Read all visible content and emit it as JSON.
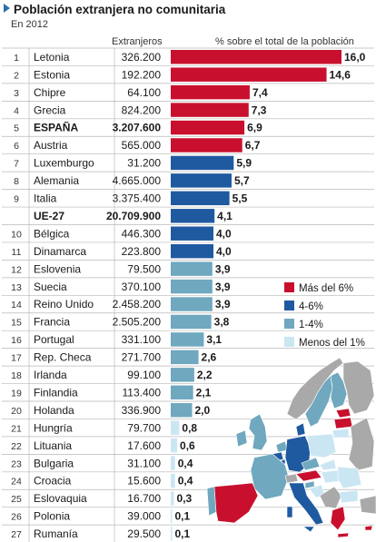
{
  "header": {
    "title": "Población extranjera no comunitaria",
    "subtitle": "En 2012",
    "col_extranjeros": "Extranjeros",
    "col_porcentaje": "% sobre el total de la población"
  },
  "colors": {
    "mas_6": "#c8102e",
    "de_4_6": "#1f5aa0",
    "de_1_4": "#6fa8bf",
    "menos_1": "#cbe6f3",
    "row_bg": "#ffffff",
    "row_rule": "#b8b8b8"
  },
  "legend": {
    "items": [
      {
        "label": "Más del 6%",
        "color": "#c8102e"
      },
      {
        "label": "4-6%",
        "color": "#1f5aa0"
      },
      {
        "label": "1-4%",
        "color": "#6fa8bf"
      },
      {
        "label": "Menos del 1%",
        "color": "#cbe6f3"
      }
    ]
  },
  "map": {
    "label": "Mapa de Europa coloreado por porcentaje"
  },
  "chart_data": {
    "type": "bar",
    "orientation": "horizontal",
    "title": "Población extranjera no comunitaria",
    "subtitle": "En 2012",
    "xlabel": "% sobre el total de la población",
    "xlim": [
      0,
      16
    ],
    "rows": [
      {
        "rank": "1",
        "country": "Letonia",
        "foreigners": "326.200",
        "pct": 16.0,
        "label": "16,0",
        "bold": false
      },
      {
        "rank": "2",
        "country": "Estonia",
        "foreigners": "192.200",
        "pct": 14.6,
        "label": "14,6",
        "bold": false
      },
      {
        "rank": "3",
        "country": "Chipre",
        "foreigners": "64.100",
        "pct": 7.4,
        "label": "7,4",
        "bold": false
      },
      {
        "rank": "4",
        "country": "Grecia",
        "foreigners": "824.200",
        "pct": 7.3,
        "label": "7,3",
        "bold": false
      },
      {
        "rank": "5",
        "country": "ESPAÑA",
        "foreigners": "3.207.600",
        "pct": 6.9,
        "label": "6,9",
        "bold": true
      },
      {
        "rank": "6",
        "country": "Austria",
        "foreigners": "565.000",
        "pct": 6.7,
        "label": "6,7",
        "bold": false
      },
      {
        "rank": "7",
        "country": "Luxemburgo",
        "foreigners": "31.200",
        "pct": 5.9,
        "label": "5,9",
        "bold": false
      },
      {
        "rank": "8",
        "country": "Alemania",
        "foreigners": "4.665.000",
        "pct": 5.7,
        "label": "5,7",
        "bold": false
      },
      {
        "rank": "9",
        "country": "Italia",
        "foreigners": "3.375.400",
        "pct": 5.5,
        "label": "5,5",
        "bold": false
      },
      {
        "rank": "",
        "country": "UE-27",
        "foreigners": "20.709.900",
        "pct": 4.1,
        "label": "4,1",
        "bold": true
      },
      {
        "rank": "10",
        "country": "Bélgica",
        "foreigners": "446.300",
        "pct": 4.0,
        "label": "4,0",
        "bold": false
      },
      {
        "rank": "11",
        "country": "Dinamarca",
        "foreigners": "223.800",
        "pct": 4.0,
        "label": "4,0",
        "bold": false
      },
      {
        "rank": "12",
        "country": "Eslovenia",
        "foreigners": "79.500",
        "pct": 3.9,
        "label": "3,9",
        "bold": false
      },
      {
        "rank": "13",
        "country": "Suecia",
        "foreigners": "370.100",
        "pct": 3.9,
        "label": "3,9",
        "bold": false
      },
      {
        "rank": "14",
        "country": "Reino Unido",
        "foreigners": "2.458.200",
        "pct": 3.9,
        "label": "3,9",
        "bold": false
      },
      {
        "rank": "15",
        "country": "Francia",
        "foreigners": "2.505.200",
        "pct": 3.8,
        "label": "3,8",
        "bold": false
      },
      {
        "rank": "16",
        "country": "Portugal",
        "foreigners": "331.100",
        "pct": 3.1,
        "label": "3,1",
        "bold": false
      },
      {
        "rank": "17",
        "country": "Rep. Checa",
        "foreigners": "271.700",
        "pct": 2.6,
        "label": "2,6",
        "bold": false
      },
      {
        "rank": "18",
        "country": "Irlanda",
        "foreigners": "99.100",
        "pct": 2.2,
        "label": "2,2",
        "bold": false
      },
      {
        "rank": "19",
        "country": "Finlandia",
        "foreigners": "113.400",
        "pct": 2.1,
        "label": "2,1",
        "bold": false
      },
      {
        "rank": "20",
        "country": "Holanda",
        "foreigners": "336.900",
        "pct": 2.0,
        "label": "2,0",
        "bold": false
      },
      {
        "rank": "21",
        "country": "Hungría",
        "foreigners": "79.700",
        "pct": 0.8,
        "label": "0,8",
        "bold": false
      },
      {
        "rank": "22",
        "country": "Lituania",
        "foreigners": "17.600",
        "pct": 0.6,
        "label": "0,6",
        "bold": false
      },
      {
        "rank": "23",
        "country": "Bulgaria",
        "foreigners": "31.100",
        "pct": 0.4,
        "label": "0,4",
        "bold": false
      },
      {
        "rank": "24",
        "country": "Croacia",
        "foreigners": "15.600",
        "pct": 0.4,
        "label": "0,4",
        "bold": false
      },
      {
        "rank": "25",
        "country": "Eslovaquia",
        "foreigners": "16.700",
        "pct": 0.3,
        "label": "0,3",
        "bold": false
      },
      {
        "rank": "26",
        "country": "Polonia",
        "foreigners": "39.000",
        "pct": 0.1,
        "label": "0,1",
        "bold": false
      },
      {
        "rank": "27",
        "country": "Rumanía",
        "foreigners": "29.500",
        "pct": 0.1,
        "label": "0,1",
        "bold": false
      }
    ]
  }
}
